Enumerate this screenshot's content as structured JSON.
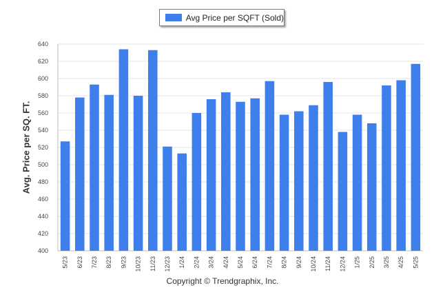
{
  "chart_data": {
    "type": "bar",
    "title": "",
    "xlabel": "",
    "ylabel": "Avg. Price per SQ. FT.",
    "ylim": [
      400,
      640
    ],
    "yticks": [
      400,
      420,
      440,
      460,
      480,
      500,
      520,
      540,
      560,
      580,
      600,
      620,
      640
    ],
    "grid": true,
    "legend_position": "top-center",
    "categories": [
      "5/23",
      "6/23",
      "7/23",
      "8/23",
      "9/23",
      "10/23",
      "11/23",
      "12/23",
      "1/24",
      "2/24",
      "3/24",
      "4/24",
      "5/24",
      "6/24",
      "7/24",
      "8/24",
      "9/24",
      "10/24",
      "11/24",
      "12/24",
      "1/25",
      "2/25",
      "3/25",
      "4/25",
      "5/25"
    ],
    "series": [
      {
        "name": "Avg Price per SQFT (Sold)",
        "color": "#3f7fec",
        "values": [
          527,
          578,
          593,
          581,
          634,
          580,
          633,
          521,
          513,
          560,
          576,
          584,
          573,
          577,
          597,
          558,
          562,
          569,
          596,
          538,
          558,
          548,
          592,
          598,
          617
        ]
      }
    ]
  },
  "legend": {
    "label": "Avg Price per SQFT (Sold)",
    "color": "#3f7fec"
  },
  "footer": "Copyright © Trendgraphix, Inc."
}
